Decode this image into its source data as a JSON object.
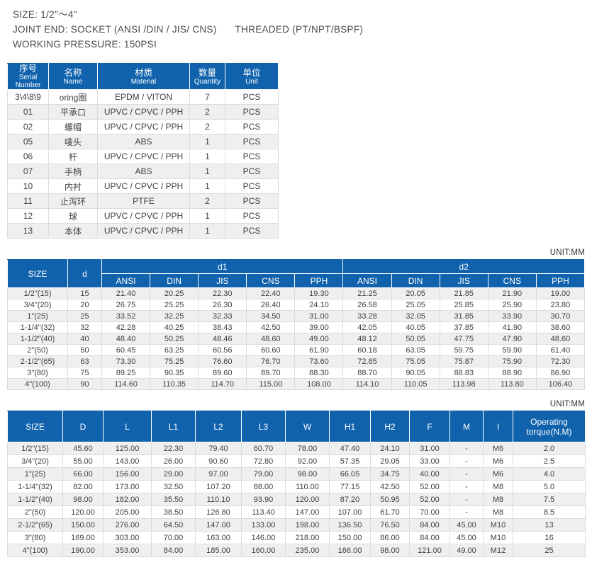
{
  "colors": {
    "header_blue": "#1062ac",
    "stripe_gray": "#efefef"
  },
  "spec": {
    "size_line": "SIZE: 1/2\"～4\"",
    "joint_end_socket": "JOINT END: SOCKET (ANSI /DIN / JIS/ CNS)",
    "joint_end_threaded": "THREADED (PT/NPT/BSPF)",
    "working_pressure_line": "WORKING PRESSURE: 150PSI"
  },
  "parts_table": {
    "headers": [
      {
        "cn": "序号",
        "en": "Serial Number"
      },
      {
        "cn": "名称",
        "en": "Name"
      },
      {
        "cn": "材质",
        "en": "Material"
      },
      {
        "cn": "数量",
        "en": "Quantity"
      },
      {
        "cn": "单位",
        "en": "Unit"
      }
    ],
    "rows": [
      [
        "3\\4\\8\\9",
        "oring圈",
        "EPDM / VITON",
        "7",
        "PCS"
      ],
      [
        "01",
        "平承口",
        "UPVC / CPVC / PPH",
        "2",
        "PCS"
      ],
      [
        "02",
        "螺帽",
        "UPVC / CPVC / PPH",
        "2",
        "PCS"
      ],
      [
        "05",
        "唛头",
        "ABS",
        "1",
        "PCS"
      ],
      [
        "06",
        "杆",
        "UPVC / CPVC / PPH",
        "1",
        "PCS"
      ],
      [
        "07",
        "手柄",
        "ABS",
        "1",
        "PCS"
      ],
      [
        "10",
        "内衬",
        "UPVC / CPVC / PPH",
        "1",
        "PCS"
      ],
      [
        "11",
        "止泻环",
        "PTFE",
        "2",
        "PCS"
      ],
      [
        "12",
        "球",
        "UPVC / CPVC / PPH",
        "1",
        "PCS"
      ],
      [
        "13",
        "本体",
        "UPVC / CPVC / PPH",
        "1",
        "PCS"
      ]
    ]
  },
  "dimensions_table_1": {
    "unit_label": "UNIT:MM",
    "size_header": "SIZE",
    "d_header": "d",
    "group_headers": [
      "d1",
      "d2"
    ],
    "sub_columns": [
      "ANSI",
      "DIN",
      "JIS",
      "CNS",
      "PPH"
    ],
    "rows": [
      [
        "1/2\"(15)",
        "15",
        "21.40",
        "20.25",
        "22.30",
        "22.40",
        "19.30",
        "21.25",
        "20.05",
        "21.85",
        "21.90",
        "19.00"
      ],
      [
        "3/4\"(20)",
        "20",
        "26.75",
        "25.25",
        "26.30",
        "26.40",
        "24.10",
        "26.58",
        "25.05",
        "25.85",
        "25.90",
        "23.80"
      ],
      [
        "1\"(25)",
        "25",
        "33.52",
        "32.25",
        "32.33",
        "34.50",
        "31.00",
        "33.28",
        "32.05",
        "31.85",
        "33.90",
        "30.70"
      ],
      [
        "1-1/4\"(32)",
        "32",
        "42.28",
        "40.25",
        "38.43",
        "42.50",
        "39.00",
        "42.05",
        "40.05",
        "37.85",
        "41.90",
        "38.60"
      ],
      [
        "1-1/2\"(40)",
        "40",
        "48.40",
        "50.25",
        "48.46",
        "48.60",
        "49.00",
        "48.12",
        "50.05",
        "47.75",
        "47.90",
        "48.60"
      ],
      [
        "2\"(50)",
        "50",
        "60.45",
        "63.25",
        "60.56",
        "60.60",
        "61.90",
        "60.18",
        "63.05",
        "59.75",
        "59.90",
        "61.40"
      ],
      [
        "2-1/2\"(65)",
        "63",
        "73.30",
        "75.25",
        "76.60",
        "76.70",
        "73.60",
        "72.85",
        "75.05",
        "75.87",
        "75.90",
        "72.30"
      ],
      [
        "3\"(80)",
        "75",
        "89.25",
        "90.35",
        "89.60",
        "89.70",
        "88.30",
        "88.70",
        "90.05",
        "88.83",
        "88.90",
        "86.90"
      ],
      [
        "4\"(100)",
        "90",
        "114.60",
        "110.35",
        "114.70",
        "115.00",
        "108.00",
        "114.10",
        "110.05",
        "113.98",
        "113.80",
        "106.40"
      ]
    ]
  },
  "dimensions_table_2": {
    "unit_label": "UNIT:MM",
    "columns": [
      "SIZE",
      "D",
      "L",
      "L1",
      "L2",
      "L3",
      "W",
      "H1",
      "H2",
      "F",
      "M",
      "I",
      "Operating torque(N.M)"
    ],
    "rows": [
      [
        "1/2\"(15)",
        "45.60",
        "125.00",
        "22.30",
        "79.40",
        "60.70",
        "78.00",
        "47.40",
        "24.10",
        "31.00",
        "-",
        "M6",
        "2.0"
      ],
      [
        "3/4\"(20)",
        "55.00",
        "143.00",
        "26.00",
        "90.60",
        "72.80",
        "92.00",
        "57.35",
        "29.05",
        "33.00",
        "-",
        "M6",
        "2.5"
      ],
      [
        "1\"(25)",
        "66.00",
        "156.00",
        "29.00",
        "97.00",
        "79.00",
        "98.00",
        "66.05",
        "34.75",
        "40.00",
        "-",
        "M6",
        "4.0"
      ],
      [
        "1-1/4\"(32)",
        "82.00",
        "173.00",
        "32.50",
        "107.20",
        "88.00",
        "110.00",
        "77.15",
        "42.50",
        "52.00",
        "-",
        "M8",
        "5.0"
      ],
      [
        "1-1/2\"(40)",
        "98.00",
        "182.00",
        "35.50",
        "110.10",
        "93.90",
        "120.00",
        "87.20",
        "50.95",
        "52.00",
        "-",
        "M8",
        "7.5"
      ],
      [
        "2\"(50)",
        "120.00",
        "205.00",
        "38.50",
        "126.80",
        "113.40",
        "147.00",
        "107.00",
        "61.70",
        "70.00",
        "-",
        "M8",
        "8.5"
      ],
      [
        "2-1/2\"(65)",
        "150.00",
        "276.00",
        "64.50",
        "147.00",
        "133.00",
        "198.00",
        "136.50",
        "76.50",
        "84.00",
        "45.00",
        "M10",
        "13"
      ],
      [
        "3\"(80)",
        "169.00",
        "303.00",
        "70.00",
        "163.00",
        "146.00",
        "218.00",
        "150.00",
        "86.00",
        "84.00",
        "45.00",
        "M10",
        "16"
      ],
      [
        "4\"(100)",
        "190.00",
        "353.00",
        "84.00",
        "185.00",
        "160.00",
        "235.00",
        "166.00",
        "98.00",
        "121.00",
        "49.00",
        "M12",
        "25"
      ]
    ]
  }
}
